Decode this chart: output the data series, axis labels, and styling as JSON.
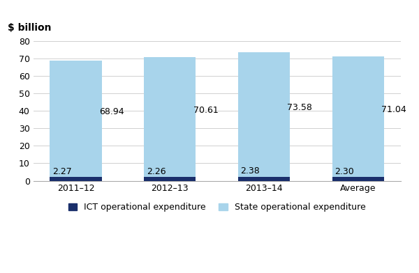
{
  "categories": [
    "2011–12",
    "2012–13",
    "2013–14",
    "Average"
  ],
  "ict_values": [
    2.27,
    2.26,
    2.38,
    2.3
  ],
  "state_values": [
    68.94,
    70.61,
    73.58,
    71.04
  ],
  "ict_color": "#1a2f6b",
  "state_color": "#a8d4eb",
  "ylabel": "$ billion",
  "ylim": [
    0,
    80
  ],
  "yticks": [
    0,
    10,
    20,
    30,
    40,
    50,
    60,
    70,
    80
  ],
  "legend_ict": "ICT operational expenditure",
  "legend_state": "State operational expenditure",
  "bar_width": 0.55,
  "background_color": "#ffffff",
  "grid_color": "#d0d0d0",
  "label_fontsize": 9,
  "axis_fontsize": 9,
  "ylabel_fontsize": 10
}
